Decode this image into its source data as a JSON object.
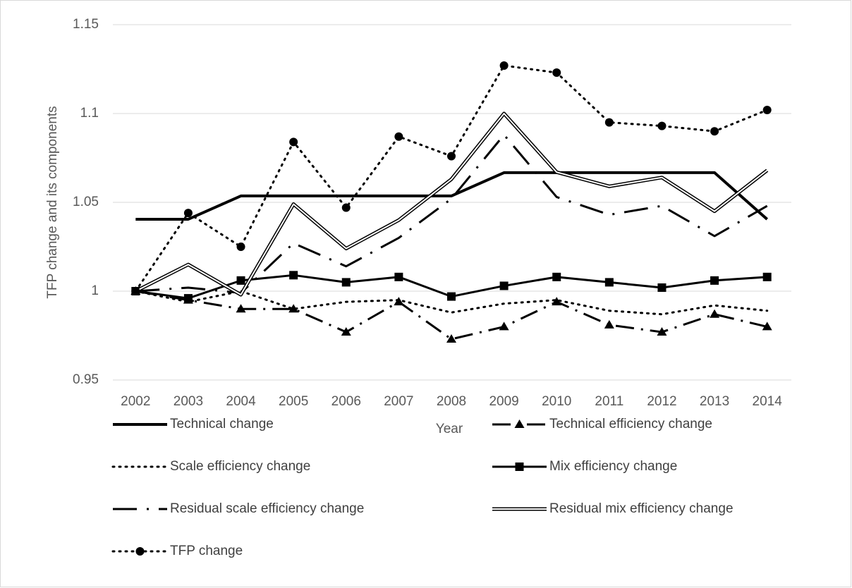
{
  "chart_data": {
    "type": "line",
    "x_label": "Year",
    "y_label": "TFP change and its components",
    "categories": [
      "2002",
      "2003",
      "2004",
      "2005",
      "2006",
      "2007",
      "2008",
      "2009",
      "2010",
      "2011",
      "2012",
      "2013",
      "2014"
    ],
    "ylim": [
      0.95,
      1.15
    ],
    "yticks": [
      0.95,
      1,
      1.05,
      1.1,
      1.15
    ],
    "grid": true,
    "legend": "bottom",
    "series": [
      {
        "name": "Technical change",
        "color": "#000000",
        "dash": "solid",
        "width": 4,
        "values": [
          1.0405,
          1.0405,
          1.0536,
          1.0536,
          1.0536,
          1.0536,
          1.0536,
          1.0667,
          1.0667,
          1.0667,
          1.0667,
          1.0667,
          1.0405
        ]
      },
      {
        "name": "Technical efficiency change",
        "color": "#000000",
        "dash": "dash-dot",
        "width": 3,
        "marker": "triangle",
        "values": [
          1.0,
          0.995,
          0.99,
          0.99,
          0.977,
          0.994,
          0.973,
          0.98,
          0.994,
          0.981,
          0.977,
          0.987,
          0.98
        ]
      },
      {
        "name": "Scale efficiency change",
        "color": "#000000",
        "dash": "dotted",
        "width": 3,
        "values": [
          1.0,
          0.994,
          1.0,
          0.99,
          0.994,
          0.995,
          0.988,
          0.993,
          0.995,
          0.989,
          0.987,
          0.992,
          0.989
        ]
      },
      {
        "name": "Mix efficiency change",
        "color": "#000000",
        "dash": "solid",
        "width": 3,
        "marker": "square",
        "values": [
          1.0,
          0.996,
          1.006,
          1.009,
          1.005,
          1.008,
          0.997,
          1.003,
          1.008,
          1.005,
          1.002,
          1.006,
          1.008
        ]
      },
      {
        "name": "Residual scale efficiency change",
        "color": "#000000",
        "dash": "long-dash-dot",
        "width": 3,
        "values": [
          1.0,
          1.002,
          0.999,
          1.027,
          1.014,
          1.03,
          1.052,
          1.088,
          1.053,
          1.043,
          1.048,
          1.031,
          1.048
        ]
      },
      {
        "name": "Residual mix efficiency change",
        "color": "#000000",
        "dash": "double",
        "width": 5,
        "values": [
          1.0,
          1.015,
          0.998,
          1.049,
          1.024,
          1.04,
          1.063,
          1.1,
          1.067,
          1.059,
          1.064,
          1.045,
          1.068
        ]
      },
      {
        "name": "TFP change",
        "color": "#000000",
        "dash": "dotted",
        "width": 3,
        "marker": "circle",
        "values": [
          1.0,
          1.044,
          1.025,
          1.084,
          1.047,
          1.087,
          1.076,
          1.127,
          1.123,
          1.095,
          1.093,
          1.09,
          1.102
        ]
      }
    ]
  }
}
